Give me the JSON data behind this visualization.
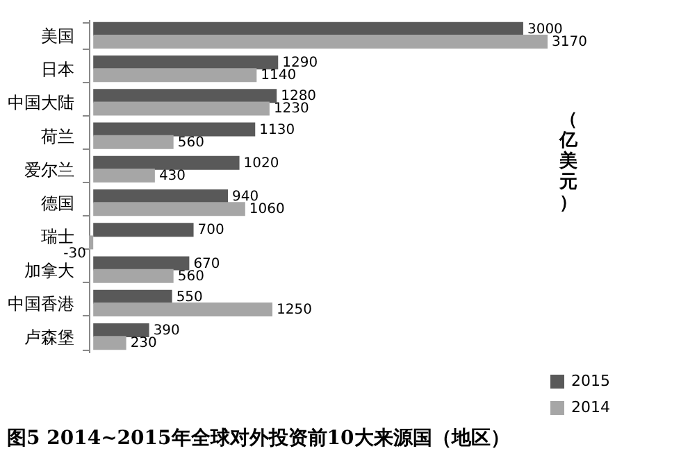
{
  "chart_data": {
    "type": "bar",
    "orientation": "horizontal",
    "title": "图5 2014~2015年全球对外投资前10大来源国（地区）",
    "annotations": [
      "（亿美元）"
    ],
    "categories": [
      "美国",
      "日本",
      "中国大陆",
      "荷兰",
      "爱尔兰",
      "德国",
      "瑞士",
      "加拿大",
      "中国香港",
      "卢森堡"
    ],
    "series": [
      {
        "name": "2015",
        "color": "#595959",
        "values": [
          3000,
          1290,
          1280,
          1130,
          1020,
          940,
          700,
          670,
          550,
          390
        ]
      },
      {
        "name": "2014",
        "color": "#a6a6a6",
        "values": [
          3170,
          1140,
          1230,
          560,
          430,
          1060,
          -30,
          560,
          1250,
          230
        ]
      }
    ],
    "data_labels": true,
    "legend": "bottom right",
    "grid": false,
    "tick_labels": "y"
  }
}
